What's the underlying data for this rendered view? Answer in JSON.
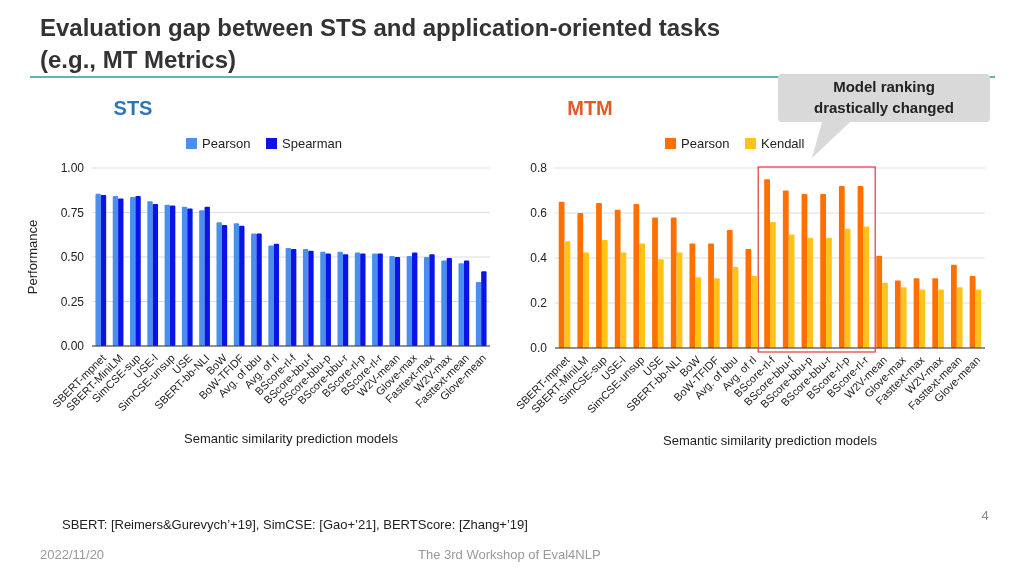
{
  "chart_data": [
    {
      "type": "bar",
      "title": "STS",
      "xlabel": "Semantic similarity prediction models",
      "ylabel": "Performance",
      "categories": [
        "SBERT-mpnet",
        "SBERT-MiniLM",
        "SimCSE-sup",
        "USE-l",
        "SimCSE-unsup",
        "USE",
        "SBERT-bb-NLI",
        "BoW",
        "BoW-TFIDF",
        "Avg. of bbu",
        "Avg. of rl",
        "BScore-rl-f",
        "BScore-bbu-f",
        "BScore-bbu-p",
        "BScore-bbu-r",
        "BScore-rl-p",
        "BScore-rl-r",
        "W2V-mean",
        "Glove-max",
        "Fasttext-max",
        "W2V-max",
        "Fasttext-mean",
        "Glove-mean"
      ],
      "series": [
        {
          "name": "Pearson",
          "color": "#4a8ff0",
          "values": [
            0.855,
            0.843,
            0.837,
            0.813,
            0.793,
            0.783,
            0.763,
            0.695,
            0.69,
            0.632,
            0.565,
            0.55,
            0.545,
            0.53,
            0.53,
            0.525,
            0.52,
            0.505,
            0.505,
            0.5,
            0.48,
            0.465,
            0.36
          ]
        },
        {
          "name": "Spearman",
          "color": "#0a14e6",
          "values": [
            0.848,
            0.828,
            0.843,
            0.798,
            0.79,
            0.773,
            0.783,
            0.68,
            0.675,
            0.632,
            0.575,
            0.545,
            0.535,
            0.52,
            0.515,
            0.52,
            0.52,
            0.5,
            0.525,
            0.515,
            0.495,
            0.48,
            0.42
          ]
        }
      ],
      "ylim": [
        0,
        1
      ],
      "yticks": [
        {
          "value": 0,
          "label": "0.00"
        },
        {
          "value": 0.25,
          "label": "0.25"
        },
        {
          "value": 0.5,
          "label": "0.50"
        },
        {
          "value": 0.75,
          "label": "0.75"
        },
        {
          "value": 1,
          "label": "1.00"
        }
      ],
      "grid": "y",
      "legend": "top"
    },
    {
      "type": "bar",
      "title": "MTM",
      "xlabel": "Semantic similarity prediction models",
      "categories": [
        "SBERT-mpnet",
        "SBERT-MiniLM",
        "SimCSE-sup",
        "USE-l",
        "SimCSE-unsup",
        "USE",
        "SBERT-bb-NLI",
        "BoW",
        "BoW-TFIDF",
        "Avg. of bbu",
        "Avg. of rl",
        "BScore-rl-f",
        "BScore-bbu-f",
        "BScore-bbu-p",
        "BScore-bbu-r",
        "BScore-rl-p",
        "BScore-rl-r",
        "W2V-mean",
        "Glove-max",
        "Fasttext-max",
        "W2V-max",
        "Fasttext-mean",
        "Glove-mean"
      ],
      "series": [
        {
          "name": "Pearson",
          "color": "#ff7000",
          "values": [
            0.65,
            0.6,
            0.645,
            0.615,
            0.64,
            0.58,
            0.58,
            0.465,
            0.465,
            0.525,
            0.44,
            0.75,
            0.7,
            0.685,
            0.685,
            0.72,
            0.72,
            0.41,
            0.3,
            0.31,
            0.31,
            0.37,
            0.32
          ]
        },
        {
          "name": "Kendall",
          "color": "#ffc21a",
          "values": [
            0.475,
            0.425,
            0.48,
            0.425,
            0.465,
            0.395,
            0.425,
            0.315,
            0.31,
            0.36,
            0.32,
            0.56,
            0.505,
            0.49,
            0.49,
            0.53,
            0.54,
            0.29,
            0.27,
            0.26,
            0.26,
            0.27,
            0.26
          ]
        }
      ],
      "ylim": [
        0,
        0.8
      ],
      "yticks": [
        {
          "value": 0,
          "label": "0.0"
        },
        {
          "value": 0.2,
          "label": "0.2"
        },
        {
          "value": 0.4,
          "label": "0.4"
        },
        {
          "value": 0.6,
          "label": "0.6"
        },
        {
          "value": 0.8,
          "label": "0.8"
        }
      ],
      "grid": "y",
      "legend": "top"
    },
    {
      "type": "other",
      "title": "Evaluation gap between STS and application-oriented tasks\n(e.g., MT Metrics)",
      "annotations": [
        "Model ranking\ndrastically changed",
        "SBERT: [Reimers&Gurevych’+19], SimCSE: [Gao+’21], BERTScore: [Zhang+’19]",
        "2022/11/20",
        "The 3rd Workshop of Eval4NLP",
        "4"
      ]
    }
  ]
}
